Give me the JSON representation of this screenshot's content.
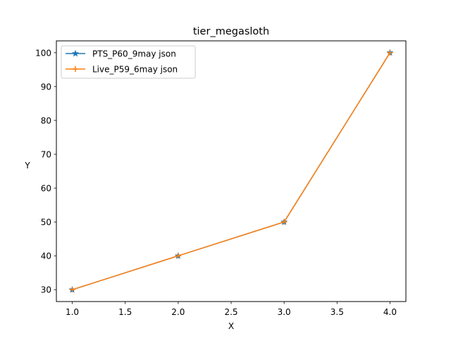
{
  "chart_data": {
    "type": "line",
    "title": "tier_megasloth",
    "xlabel": "X",
    "ylabel": "Y",
    "xlim": [
      0.85,
      4.15
    ],
    "ylim": [
      26.5,
      103.5
    ],
    "xticks": [
      1.0,
      1.5,
      2.0,
      2.5,
      3.0,
      3.5,
      4.0
    ],
    "xtick_labels": [
      "1.0",
      "1.5",
      "2.0",
      "2.5",
      "3.0",
      "3.5",
      "4.0"
    ],
    "yticks": [
      30,
      40,
      50,
      60,
      70,
      80,
      90,
      100
    ],
    "ytick_labels": [
      "30",
      "40",
      "50",
      "60",
      "70",
      "80",
      "90",
      "100"
    ],
    "grid": false,
    "legend_position": "upper-left",
    "x": [
      1,
      2,
      3,
      4
    ],
    "series": [
      {
        "name": "PTS_P60_9may json",
        "values": [
          30,
          40,
          50,
          100
        ],
        "color": "#1f77b4",
        "marker": "star"
      },
      {
        "name": "Live_P59_6may json",
        "values": [
          30,
          40,
          50,
          100
        ],
        "color": "#ff7f0e",
        "marker": "plus"
      }
    ]
  }
}
